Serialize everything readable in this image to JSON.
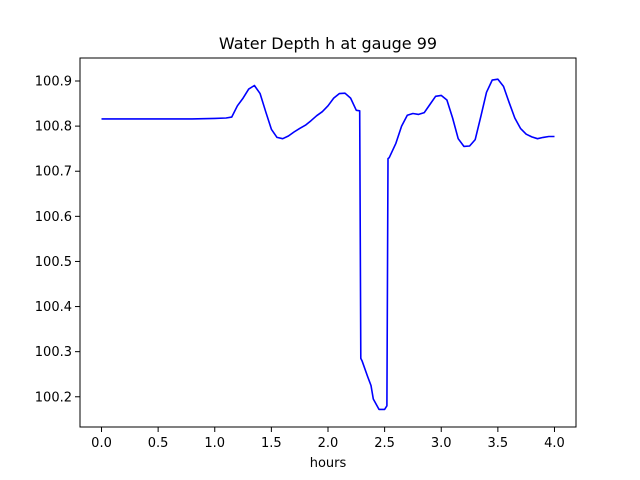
{
  "chart_data": {
    "type": "line",
    "title": "Water Depth h at gauge 99",
    "xlabel": "hours",
    "ylabel": "",
    "xlim": [
      -0.19,
      4.19
    ],
    "ylim": [
      100.133,
      100.951
    ],
    "x_ticks": [
      0.0,
      0.5,
      1.0,
      1.5,
      2.0,
      2.5,
      3.0,
      3.5,
      4.0
    ],
    "x_tick_labels": [
      "0.0",
      "0.5",
      "1.0",
      "1.5",
      "2.0",
      "2.5",
      "3.0",
      "3.5",
      "4.0"
    ],
    "y_ticks": [
      100.2,
      100.3,
      100.4,
      100.5,
      100.6,
      100.7,
      100.8,
      100.9
    ],
    "y_tick_labels": [
      "100.2",
      "100.3",
      "100.4",
      "100.5",
      "100.6",
      "100.7",
      "100.8",
      "100.9"
    ],
    "grid": false,
    "series": [
      {
        "color": "#0000ff",
        "x": [
          0.0,
          0.2,
          0.5,
          0.8,
          1.0,
          1.1,
          1.15,
          1.2,
          1.25,
          1.3,
          1.35,
          1.4,
          1.45,
          1.5,
          1.55,
          1.6,
          1.65,
          1.7,
          1.75,
          1.8,
          1.85,
          1.9,
          1.95,
          2.0,
          2.05,
          2.1,
          2.15,
          2.2,
          2.25,
          2.28,
          2.29,
          2.3,
          2.35,
          2.38,
          2.4,
          2.45,
          2.5,
          2.52,
          2.53,
          2.54,
          2.6,
          2.65,
          2.7,
          2.75,
          2.8,
          2.85,
          2.9,
          2.95,
          3.0,
          3.05,
          3.1,
          3.15,
          3.2,
          3.25,
          3.3,
          3.35,
          3.4,
          3.45,
          3.5,
          3.55,
          3.6,
          3.65,
          3.7,
          3.75,
          3.8,
          3.85,
          3.9,
          3.95,
          4.0
        ],
        "y": [
          100.816,
          100.816,
          100.816,
          100.816,
          100.817,
          100.818,
          100.82,
          100.845,
          100.862,
          100.882,
          100.89,
          100.872,
          100.832,
          100.793,
          100.775,
          100.772,
          100.778,
          100.787,
          100.795,
          100.802,
          100.812,
          100.823,
          100.832,
          100.845,
          100.862,
          100.872,
          100.873,
          100.862,
          100.835,
          100.834,
          100.285,
          100.28,
          100.245,
          100.225,
          100.195,
          100.172,
          100.172,
          100.18,
          100.728,
          100.73,
          100.762,
          100.8,
          100.824,
          100.828,
          100.826,
          100.83,
          100.848,
          100.866,
          100.868,
          100.858,
          100.818,
          100.772,
          100.755,
          100.756,
          100.77,
          100.822,
          100.875,
          100.902,
          100.904,
          100.888,
          100.852,
          100.818,
          100.795,
          100.782,
          100.776,
          100.772,
          100.775,
          100.777,
          100.777
        ]
      }
    ]
  }
}
